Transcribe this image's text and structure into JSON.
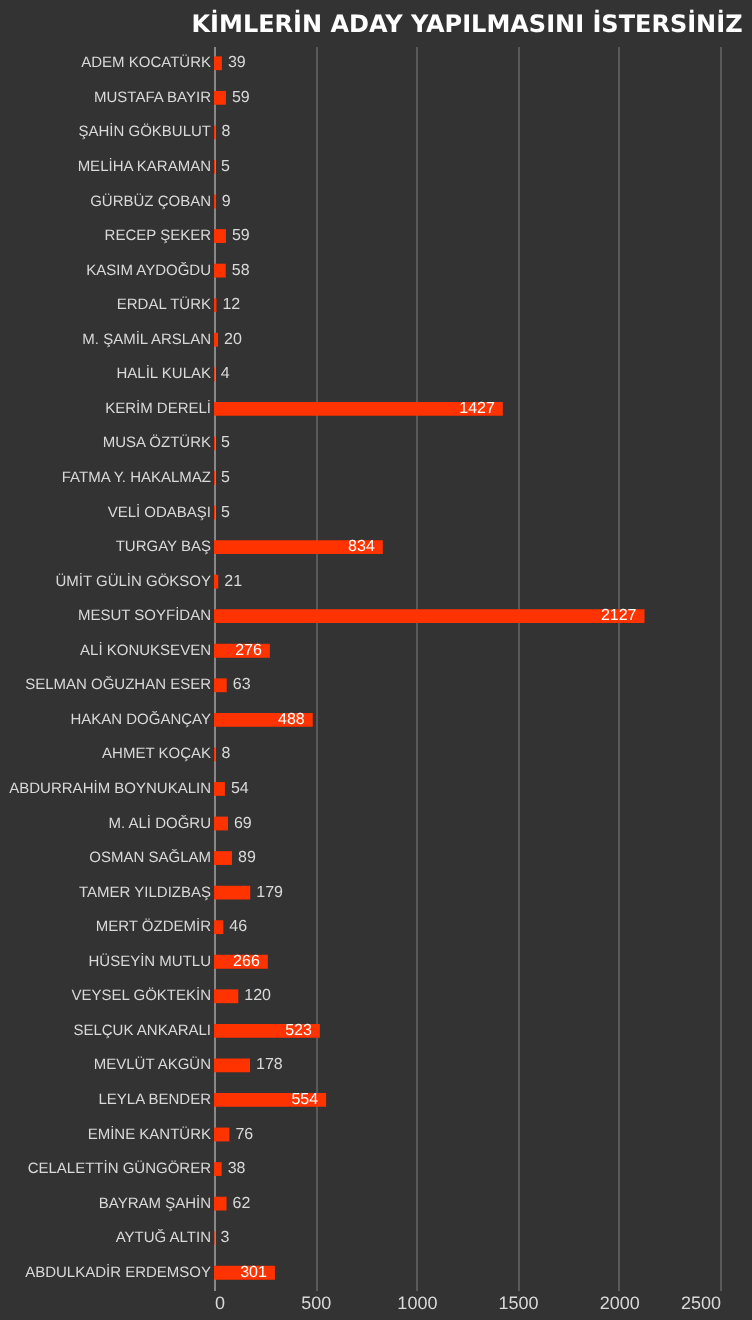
{
  "chart_data": {
    "type": "bar",
    "orientation": "horizontal",
    "title": "KİMLERİN ADAY YAPILMASINI İSTERSİNİZ",
    "categories": [
      "ADEM KOCATÜRK",
      "MUSTAFA BAYIR",
      "ŞAHİN GÖKBULUT",
      "MELİHA KARAMAN",
      "GÜRBÜZ ÇOBAN",
      "RECEP ŞEKER",
      "KASIM AYDOĞDU",
      "ERDAL TÜRK",
      "M. ŞAMİL ARSLAN",
      "HALİL KULAK",
      "KERİM DERELİ",
      "MUSA ÖZTÜRK",
      "FATMA Y. HAKALMAZ",
      "VELİ ODABAŞI",
      "TURGAY BAŞ",
      "ÜMİT GÜLİN GÖKSOY",
      "MESUT SOYFİDAN",
      "ALİ KONUKSEVEN",
      "SELMAN OĞUZHAN ESER",
      "HAKAN DOĞANÇAY",
      "AHMET KOÇAK",
      "ABDURRAHİM BOYNUKALIN",
      "M. ALİ DOĞRU",
      "OSMAN SAĞLAM",
      "TAMER YILDIZBAŞ",
      "MERT ÖZDEMİR",
      "HÜSEYİN MUTLU",
      "VEYSEL GÖKTEKİN",
      "SELÇUK ANKARALI",
      "MEVLÜT AKGÜN",
      "LEYLA BENDER",
      "EMİNE KANTÜRK",
      "CELALETTİN GÜNGÖRER",
      "BAYRAM ŞAHİN",
      "AYTUĞ ALTIN",
      "ABDULKADİR ERDEMSOY"
    ],
    "values": [
      39,
      59,
      8,
      5,
      9,
      59,
      58,
      12,
      20,
      4,
      1427,
      5,
      5,
      5,
      834,
      21,
      2127,
      276,
      63,
      488,
      8,
      54,
      69,
      89,
      179,
      46,
      266,
      120,
      523,
      178,
      554,
      76,
      38,
      62,
      3,
      301
    ],
    "color": "#ff3300",
    "data_labels": true,
    "xlim": [
      0,
      2500
    ],
    "xticks": [
      0,
      500,
      1000,
      1500,
      2000,
      2500
    ],
    "grid": "x"
  }
}
